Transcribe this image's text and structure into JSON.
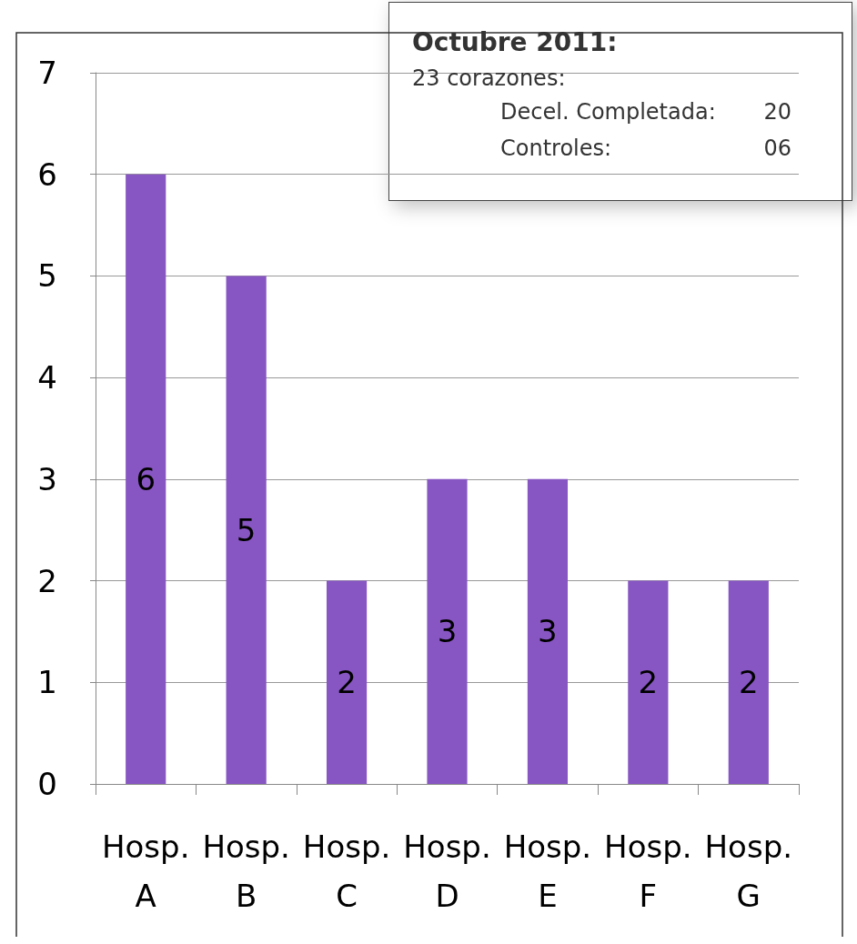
{
  "chart_data": {
    "type": "bar",
    "title": "Octubre 2011:",
    "annotations": [
      "23 corazones:",
      "Decel. Completada:",
      "20",
      "Controles:",
      "06"
    ],
    "categories": [
      "Hosp. A",
      "Hosp. B",
      "Hosp. C",
      "Hosp. D",
      "Hosp. E",
      "Hosp. F",
      "Hosp. G"
    ],
    "values": [
      6,
      5,
      2,
      3,
      3,
      2,
      2
    ],
    "color": "#8756c3",
    "ylim": [
      0,
      7
    ],
    "yticks": [
      0,
      1,
      2,
      3,
      4,
      5,
      6,
      7
    ],
    "grid": "y",
    "data_labels": true
  }
}
